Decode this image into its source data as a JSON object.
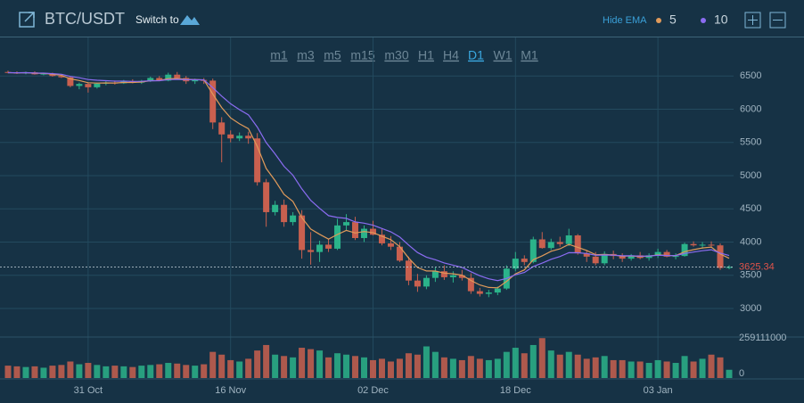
{
  "chart_data": {
    "type": "candlestick",
    "title": "BTC/USDT",
    "switch_label": "Switch to",
    "ema_toggle_label": "Hide EMA",
    "ema": [
      {
        "period": 5,
        "color": "#e09a5a"
      },
      {
        "period": 10,
        "color": "#8b6cf2"
      }
    ],
    "intervals": [
      "m1",
      "m3",
      "m5",
      "m15",
      "m30",
      "H1",
      "H4",
      "D1",
      "W1",
      "M1"
    ],
    "active_interval": "D1",
    "up_color": "#2bb38a",
    "down_color": "#c9604f",
    "categories": [
      null,
      null,
      null,
      null,
      null,
      null,
      null,
      null,
      null,
      "31 Oct",
      null,
      null,
      null,
      null,
      null,
      null,
      null,
      null,
      null,
      null,
      null,
      null,
      null,
      null,
      null,
      "16 Nov",
      null,
      null,
      null,
      null,
      null,
      null,
      null,
      null,
      null,
      null,
      null,
      null,
      null,
      null,
      null,
      "02 Dec",
      null,
      null,
      null,
      null,
      null,
      null,
      null,
      null,
      null,
      null,
      null,
      null,
      null,
      null,
      null,
      "18 Dec",
      null,
      null,
      null,
      null,
      null,
      null,
      null,
      null,
      null,
      null,
      null,
      null,
      null,
      null,
      null,
      "03 Jan",
      null,
      null,
      null,
      null,
      null,
      null,
      null,
      null
    ],
    "open": [
      6560,
      6550,
      6540,
      6555,
      6525,
      6535,
      6500,
      6480,
      6350,
      6380,
      6330,
      6385,
      6400,
      6390,
      6420,
      6400,
      6425,
      6470,
      6430,
      6520,
      6470,
      6420,
      6440,
      6430,
      5800,
      5620,
      5560,
      5600,
      5560,
      4900,
      4450,
      4560,
      4300,
      4400,
      3880,
      3850,
      3960,
      3900,
      4250,
      4300,
      4060,
      4200,
      4110,
      3980,
      3930,
      3720,
      3420,
      3330,
      3460,
      3560,
      3470,
      3500,
      3460,
      3260,
      3220,
      3240,
      3300,
      3600,
      3750,
      3700,
      4040,
      3910,
      4000,
      3970,
      4100,
      3830,
      3780,
      3680,
      3820,
      3790,
      3750,
      3800,
      3760,
      3800,
      3850,
      3780,
      3790,
      3970,
      3950,
      3960,
      3950,
      3610
    ],
    "high": [
      6580,
      6570,
      6565,
      6570,
      6545,
      6550,
      6520,
      6490,
      6400,
      6400,
      6400,
      6420,
      6430,
      6440,
      6450,
      6440,
      6490,
      6500,
      6550,
      6560,
      6500,
      6460,
      6470,
      6460,
      5880,
      5680,
      5650,
      5660,
      5640,
      4950,
      4620,
      4640,
      4450,
      4480,
      4150,
      4020,
      4050,
      4350,
      4420,
      4380,
      4250,
      4320,
      4200,
      4090,
      4000,
      3780,
      3520,
      3500,
      3620,
      3650,
      3560,
      3580,
      3530,
      3310,
      3280,
      3330,
      3650,
      3850,
      3800,
      4080,
      4150,
      4050,
      4080,
      4200,
      4120,
      3880,
      3850,
      3860,
      3870,
      3830,
      3820,
      3850,
      3830,
      3900,
      3880,
      3830,
      3990,
      4010,
      4000,
      4010,
      3980,
      3650
    ],
    "low": [
      6540,
      6530,
      6525,
      6520,
      6510,
      6490,
      6470,
      6330,
      6300,
      6250,
      6310,
      6360,
      6370,
      6380,
      6390,
      6380,
      6410,
      6420,
      6420,
      6450,
      6380,
      6380,
      6380,
      5700,
      5200,
      5500,
      5520,
      5480,
      4850,
      4230,
      4400,
      4230,
      4250,
      3750,
      3660,
      3700,
      3850,
      3880,
      4180,
      4030,
      4000,
      4100,
      3950,
      3880,
      3700,
      3350,
      3250,
      3290,
      3400,
      3430,
      3390,
      3420,
      3220,
      3180,
      3170,
      3200,
      3280,
      3560,
      3650,
      3680,
      3900,
      3880,
      3930,
      3940,
      3810,
      3700,
      3650,
      3650,
      3740,
      3700,
      3720,
      3740,
      3720,
      3760,
      3770,
      3740,
      3780,
      3930,
      3900,
      3930,
      3580,
      3590
    ],
    "close": [
      6550,
      6540,
      6555,
      6525,
      6535,
      6500,
      6480,
      6350,
      6380,
      6330,
      6385,
      6400,
      6390,
      6420,
      6400,
      6425,
      6470,
      6430,
      6520,
      6470,
      6420,
      6440,
      6430,
      5800,
      5620,
      5560,
      5600,
      5560,
      4900,
      4450,
      4560,
      4300,
      4400,
      3880,
      3850,
      3960,
      3900,
      4250,
      4300,
      4060,
      4200,
      4110,
      3980,
      3930,
      3720,
      3420,
      3330,
      3460,
      3560,
      3470,
      3500,
      3460,
      3260,
      3220,
      3240,
      3300,
      3600,
      3750,
      3700,
      4040,
      3910,
      4000,
      3970,
      4100,
      3830,
      3780,
      3680,
      3820,
      3790,
      3750,
      3800,
      3760,
      3800,
      3850,
      3780,
      3790,
      3970,
      3950,
      3960,
      3950,
      3610,
      3625.34
    ],
    "volume": [
      90000000,
      85000000,
      80000000,
      85000000,
      75000000,
      90000000,
      95000000,
      120000000,
      100000000,
      110000000,
      95000000,
      85000000,
      90000000,
      85000000,
      80000000,
      90000000,
      95000000,
      100000000,
      110000000,
      105000000,
      95000000,
      90000000,
      100000000,
      190000000,
      170000000,
      130000000,
      120000000,
      140000000,
      200000000,
      240000000,
      170000000,
      160000000,
      150000000,
      220000000,
      210000000,
      200000000,
      150000000,
      180000000,
      170000000,
      160000000,
      150000000,
      130000000,
      140000000,
      120000000,
      140000000,
      180000000,
      170000000,
      230000000,
      190000000,
      150000000,
      140000000,
      130000000,
      160000000,
      140000000,
      130000000,
      140000000,
      190000000,
      220000000,
      180000000,
      240000000,
      290000000,
      200000000,
      170000000,
      190000000,
      170000000,
      140000000,
      150000000,
      160000000,
      130000000,
      130000000,
      120000000,
      120000000,
      110000000,
      130000000,
      120000000,
      110000000,
      160000000,
      120000000,
      140000000,
      170000000,
      150000000,
      60000000
    ],
    "ylim": [
      2570,
      7080
    ],
    "yticks": [
      3000,
      3500,
      4000,
      4500,
      5000,
      5500,
      6000,
      6500
    ],
    "vlim": [
      0,
      298000000
    ],
    "vticks": [
      0,
      259111000
    ],
    "last_price": 3625.34,
    "grid": true
  }
}
